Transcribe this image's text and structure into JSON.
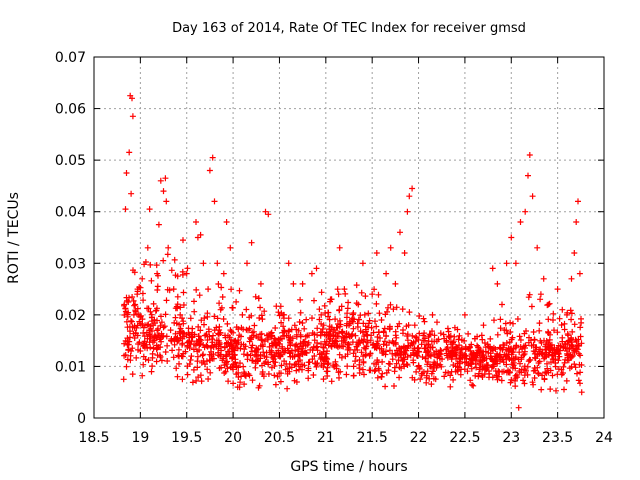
{
  "chart_data": {
    "type": "scatter",
    "title": "Day 163 of 2014, Rate Of TEC Index for receiver gmsd",
    "xlabel": "GPS time / hours",
    "ylabel": "ROTI / TECUs",
    "xlim": [
      18.5,
      24
    ],
    "ylim": [
      0,
      0.07
    ],
    "xticks": [
      18.5,
      19,
      19.5,
      20,
      20.5,
      21,
      21.5,
      22,
      22.5,
      23,
      23.5,
      24
    ],
    "xtick_labels": [
      "18.5",
      "19",
      "19.5",
      "20",
      "20.5",
      "21",
      "21.5",
      "22",
      "22.5",
      "23",
      "23.5",
      "24"
    ],
    "yticks": [
      0,
      0.01,
      0.02,
      0.03,
      0.04,
      0.05,
      0.06,
      0.07
    ],
    "ytick_labels": [
      "0",
      "0.01",
      "0.02",
      "0.03",
      "0.04",
      "0.05",
      "0.06",
      "0.07"
    ],
    "grid": true,
    "marker": "+",
    "color": "#ff0000",
    "series": [
      {
        "name": "ROTI",
        "points": [
          [
            18.82,
            0.0075
          ],
          [
            18.84,
            0.0405
          ],
          [
            18.85,
            0.0475
          ],
          [
            18.86,
            0.0155
          ],
          [
            18.87,
            0.0225
          ],
          [
            18.88,
            0.0515
          ],
          [
            18.89,
            0.0625
          ],
          [
            18.9,
            0.0435
          ],
          [
            18.91,
            0.062
          ],
          [
            18.92,
            0.0585
          ],
          [
            18.93,
            0.02
          ],
          [
            18.95,
            0.0165
          ],
          [
            18.97,
            0.025
          ],
          [
            19.0,
            0.013
          ],
          [
            19.02,
            0.027
          ],
          [
            19.05,
            0.018
          ],
          [
            19.08,
            0.033
          ],
          [
            19.1,
            0.0405
          ],
          [
            19.12,
            0.009
          ],
          [
            19.15,
            0.015
          ],
          [
            19.18,
            0.028
          ],
          [
            19.2,
            0.0375
          ],
          [
            19.22,
            0.046
          ],
          [
            19.25,
            0.044
          ],
          [
            19.27,
            0.0465
          ],
          [
            19.28,
            0.042
          ],
          [
            19.3,
            0.033
          ],
          [
            19.33,
            0.015
          ],
          [
            19.36,
            0.025
          ],
          [
            19.4,
            0.008
          ],
          [
            19.43,
            0.02
          ],
          [
            19.46,
            0.0345
          ],
          [
            19.5,
            0.028
          ],
          [
            19.55,
            0.012
          ],
          [
            19.6,
            0.038
          ],
          [
            19.62,
            0.035
          ],
          [
            19.65,
            0.0355
          ],
          [
            19.68,
            0.03
          ],
          [
            19.7,
            0.016
          ],
          [
            19.73,
            0.025
          ],
          [
            19.75,
            0.048
          ],
          [
            19.78,
            0.0505
          ],
          [
            19.8,
            0.042
          ],
          [
            19.83,
            0.03
          ],
          [
            19.86,
            0.012
          ],
          [
            19.9,
            0.028
          ],
          [
            19.93,
            0.038
          ],
          [
            19.97,
            0.033
          ],
          [
            20.0,
            0.014
          ],
          [
            20.05,
            0.006
          ],
          [
            20.1,
            0.02
          ],
          [
            20.15,
            0.03
          ],
          [
            20.2,
            0.034
          ],
          [
            20.25,
            0.012
          ],
          [
            20.3,
            0.026
          ],
          [
            20.35,
            0.04
          ],
          [
            20.38,
            0.0395
          ],
          [
            20.42,
            0.016
          ],
          [
            20.48,
            0.008
          ],
          [
            20.55,
            0.02
          ],
          [
            20.6,
            0.03
          ],
          [
            20.65,
            0.026
          ],
          [
            20.7,
            0.011
          ],
          [
            20.75,
            0.026
          ],
          [
            20.8,
            0.016
          ],
          [
            20.85,
            0.028
          ],
          [
            20.9,
            0.029
          ],
          [
            20.95,
            0.02
          ],
          [
            21.0,
            0.011
          ],
          [
            21.05,
            0.023
          ],
          [
            21.1,
            0.015
          ],
          [
            21.15,
            0.033
          ],
          [
            21.2,
            0.025
          ],
          [
            21.25,
            0.018
          ],
          [
            21.3,
            0.01
          ],
          [
            21.35,
            0.022
          ],
          [
            21.4,
            0.03
          ],
          [
            21.45,
            0.016
          ],
          [
            21.5,
            0.024
          ],
          [
            21.55,
            0.032
          ],
          [
            21.6,
            0.019
          ],
          [
            21.65,
            0.028
          ],
          [
            21.7,
            0.033
          ],
          [
            21.75,
            0.026
          ],
          [
            21.8,
            0.036
          ],
          [
            21.85,
            0.032
          ],
          [
            21.88,
            0.04
          ],
          [
            21.9,
            0.043
          ],
          [
            21.93,
            0.0445
          ],
          [
            21.96,
            0.018
          ],
          [
            22.0,
            0.01
          ],
          [
            22.05,
            0.016
          ],
          [
            22.1,
            0.013
          ],
          [
            22.15,
            0.02
          ],
          [
            22.2,
            0.012
          ],
          [
            22.3,
            0.015
          ],
          [
            22.4,
            0.01
          ],
          [
            22.5,
            0.02
          ],
          [
            22.6,
            0.012
          ],
          [
            22.7,
            0.018
          ],
          [
            22.8,
            0.029
          ],
          [
            22.85,
            0.026
          ],
          [
            22.9,
            0.022
          ],
          [
            22.95,
            0.03
          ],
          [
            23.0,
            0.035
          ],
          [
            23.05,
            0.03
          ],
          [
            23.08,
            0.002
          ],
          [
            23.1,
            0.038
          ],
          [
            23.15,
            0.04
          ],
          [
            23.18,
            0.047
          ],
          [
            23.2,
            0.051
          ],
          [
            23.23,
            0.043
          ],
          [
            23.28,
            0.033
          ],
          [
            23.32,
            0.024
          ],
          [
            23.35,
            0.027
          ],
          [
            23.4,
            0.022
          ],
          [
            23.45,
            0.019
          ],
          [
            23.5,
            0.025
          ],
          [
            23.55,
            0.021
          ],
          [
            23.6,
            0.02
          ],
          [
            23.65,
            0.027
          ],
          [
            23.68,
            0.032
          ],
          [
            23.7,
            0.038
          ],
          [
            23.72,
            0.042
          ],
          [
            23.74,
            0.028
          ],
          [
            23.76,
            0.005
          ]
        ],
        "density_envelope": {
          "x": [
            18.82,
            19.0,
            19.3,
            19.6,
            19.9,
            20.2,
            20.5,
            20.8,
            21.1,
            21.4,
            21.7,
            22.0,
            22.3,
            22.6,
            22.9,
            23.2,
            23.5,
            23.76
          ],
          "y_low": [
            0.0075,
            0.008,
            0.007,
            0.006,
            0.006,
            0.005,
            0.005,
            0.006,
            0.006,
            0.005,
            0.005,
            0.005,
            0.006,
            0.006,
            0.006,
            0.004,
            0.005,
            0.005
          ],
          "y_mid": [
            0.017,
            0.016,
            0.015,
            0.014,
            0.013,
            0.012,
            0.012,
            0.013,
            0.014,
            0.014,
            0.013,
            0.012,
            0.012,
            0.011,
            0.011,
            0.012,
            0.012,
            0.012
          ],
          "y_high": [
            0.028,
            0.03,
            0.032,
            0.028,
            0.026,
            0.024,
            0.022,
            0.024,
            0.026,
            0.026,
            0.024,
            0.02,
            0.018,
            0.017,
            0.02,
            0.024,
            0.022,
            0.02
          ]
        }
      }
    ]
  }
}
